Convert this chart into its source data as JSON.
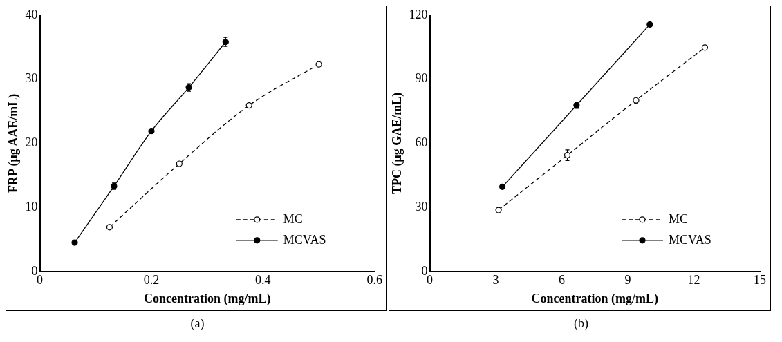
{
  "chart_data": [
    {
      "type": "line",
      "xlabel": "Concentration (mg/mL)",
      "ylabel": "FRP (μg AAE/mL)",
      "xlim": [
        0,
        0.6
      ],
      "xticks": [
        0,
        0.2,
        0.4,
        0.6
      ],
      "ylim": [
        0,
        40
      ],
      "yticks": [
        0,
        10,
        20,
        30,
        40
      ],
      "grid": false,
      "legend": "bottom right",
      "marker": "circle",
      "annotations": [
        "(a)"
      ],
      "series": [
        {
          "name": "MC",
          "color": "#000000",
          "line_style": "dashed",
          "x": [
            0.125,
            0.25,
            0.375,
            0.5
          ],
          "values": [
            6.9,
            16.8,
            25.9,
            32.3
          ],
          "errors": [
            null,
            null,
            null,
            null
          ]
        },
        {
          "name": "MCVAS",
          "color": "#000000",
          "line_style": "solid",
          "x": [
            0.0625,
            0.133,
            0.2,
            0.267,
            0.333
          ],
          "values": [
            4.5,
            13.3,
            21.9,
            28.7,
            35.8
          ],
          "errors": [
            null,
            0.5,
            null,
            0.6,
            0.7
          ]
        }
      ]
    },
    {
      "type": "line",
      "xlabel": "Concentration (mg/mL)",
      "ylabel": "TPC (μg GAE/mL)",
      "xlim": [
        0,
        15
      ],
      "xticks": [
        0,
        3,
        6,
        9,
        12,
        15
      ],
      "ylim": [
        0,
        120
      ],
      "yticks": [
        0,
        30,
        60,
        90,
        120
      ],
      "grid": false,
      "legend": "bottom right",
      "marker": "circle",
      "annotations": [
        "(b)"
      ],
      "series": [
        {
          "name": "MC",
          "color": "#000000",
          "line_style": "dashed",
          "x": [
            3.125,
            6.25,
            9.375,
            12.5
          ],
          "values": [
            28.7,
            54.4,
            80.1,
            104.8
          ],
          "errors": [
            null,
            2.5,
            1.5,
            null
          ]
        },
        {
          "name": "MCVAS",
          "color": "#000000",
          "line_style": "solid",
          "x": [
            3.3,
            6.67,
            10
          ],
          "values": [
            39.6,
            77.8,
            115.6
          ],
          "errors": [
            null,
            1.5,
            null
          ]
        }
      ]
    }
  ]
}
